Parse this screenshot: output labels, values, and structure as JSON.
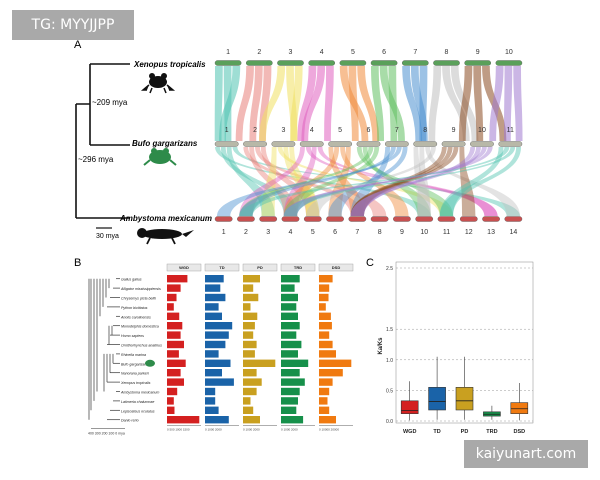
{
  "watermark_top": "TG: MYYJJPP",
  "watermark_bottom": "kaiyunart.com",
  "panelA": {
    "label": "A",
    "species": [
      {
        "name": "Xenopus tropicalis",
        "chromosomes": [
          "1",
          "2",
          "3",
          "4",
          "5",
          "6",
          "7",
          "8",
          "9",
          "10"
        ]
      },
      {
        "name": "Bufo gargarizans",
        "chromosomes": [
          "1",
          "2",
          "3",
          "4",
          "5",
          "6",
          "7",
          "8",
          "9",
          "10",
          "11"
        ]
      },
      {
        "name": "Ambystoma mexicanum",
        "chromosomes": [
          "1",
          "2",
          "3",
          "4",
          "5",
          "6",
          "7",
          "8",
          "9",
          "10",
          "11",
          "12",
          "13",
          "14"
        ]
      }
    ],
    "divergence": [
      "~209 mya",
      "~296 mya"
    ],
    "scale": "30 mya",
    "colors": [
      "#4fc3b0",
      "#e8807a",
      "#f0e060",
      "#e060c0",
      "#f08a3a",
      "#60c060",
      "#4a90d0",
      "#c0c0c0",
      "#8a4a20",
      "#a07ad0"
    ]
  },
  "panelB": {
    "label": "B",
    "headers": [
      "WGD",
      "TD",
      "PD",
      "TRD",
      "DSD"
    ],
    "colors": [
      "#d42020",
      "#1a63a8",
      "#c9a020",
      "#16904a",
      "#f07a10"
    ],
    "species": [
      "Gallus gallus",
      "Alligator mississippiensis",
      "Chrysemys picta bellii",
      "Python bivittatus",
      "Anolis carolinensis",
      "Monodelphis domestica",
      "Homo sapiens",
      "Ornithorhynchus anatinus",
      "Rhinella marina",
      "Bufo gargarizans",
      "Nanorana parkeri",
      "Xenopus tropicalis",
      "Ambystoma mexicanum",
      "Latimeria chalumnae",
      "Lepisosteus oculatus",
      "Danio rerio"
    ],
    "tree_axis": "400  300  200  100  0 mya",
    "col_axes": [
      "0   500  1000  1500",
      "0     1000    2000",
      "0     1000    2000",
      "0    1000    2000",
      "0    10000    20000"
    ],
    "bars": {
      "WGD": [
        0.6,
        0.4,
        0.28,
        0.2,
        0.36,
        0.45,
        0.4,
        0.5,
        0.35,
        0.55,
        0.4,
        0.5,
        0.3,
        0.2,
        0.22,
        0.95
      ],
      "TD": [
        0.55,
        0.45,
        0.6,
        0.4,
        0.5,
        0.8,
        0.7,
        0.6,
        0.4,
        0.75,
        0.5,
        0.85,
        0.3,
        0.3,
        0.4,
        0.7
      ],
      "PD": [
        0.5,
        0.3,
        0.45,
        0.22,
        0.42,
        0.35,
        0.3,
        0.4,
        0.35,
        0.95,
        0.4,
        0.55,
        0.4,
        0.22,
        0.3,
        0.5
      ],
      "TRD": [
        0.55,
        0.4,
        0.5,
        0.45,
        0.5,
        0.55,
        0.45,
        0.6,
        0.5,
        0.8,
        0.55,
        0.7,
        0.55,
        0.5,
        0.45,
        0.65
      ],
      "DSD": [
        0.4,
        0.3,
        0.28,
        0.2,
        0.35,
        0.38,
        0.3,
        0.4,
        0.5,
        0.95,
        0.7,
        0.4,
        0.3,
        0.25,
        0.3,
        0.5
      ]
    }
  },
  "panelC": {
    "label": "C",
    "ylabel": "Ka/Ks",
    "yticks": [
      "0.0",
      "0.5",
      "1.0",
      "1.5",
      "2.5"
    ],
    "categories": [
      "WGD",
      "TD",
      "PD",
      "TRD",
      "DSD"
    ],
    "colors": [
      "#d42020",
      "#1a63a8",
      "#c9a020",
      "#16904a",
      "#f07a10"
    ],
    "boxes": [
      {
        "min": 0.01,
        "q1": 0.12,
        "median": 0.17,
        "q3": 0.33,
        "max": 0.65
      },
      {
        "min": 0.02,
        "q1": 0.18,
        "median": 0.32,
        "q3": 0.55,
        "max": 1.05
      },
      {
        "min": 0.02,
        "q1": 0.18,
        "median": 0.33,
        "q3": 0.55,
        "max": 1.05
      },
      {
        "min": 0.02,
        "q1": 0.08,
        "median": 0.11,
        "q3": 0.15,
        "max": 0.25
      },
      {
        "min": 0.01,
        "q1": 0.12,
        "median": 0.2,
        "q3": 0.3,
        "max": 0.62
      }
    ]
  }
}
